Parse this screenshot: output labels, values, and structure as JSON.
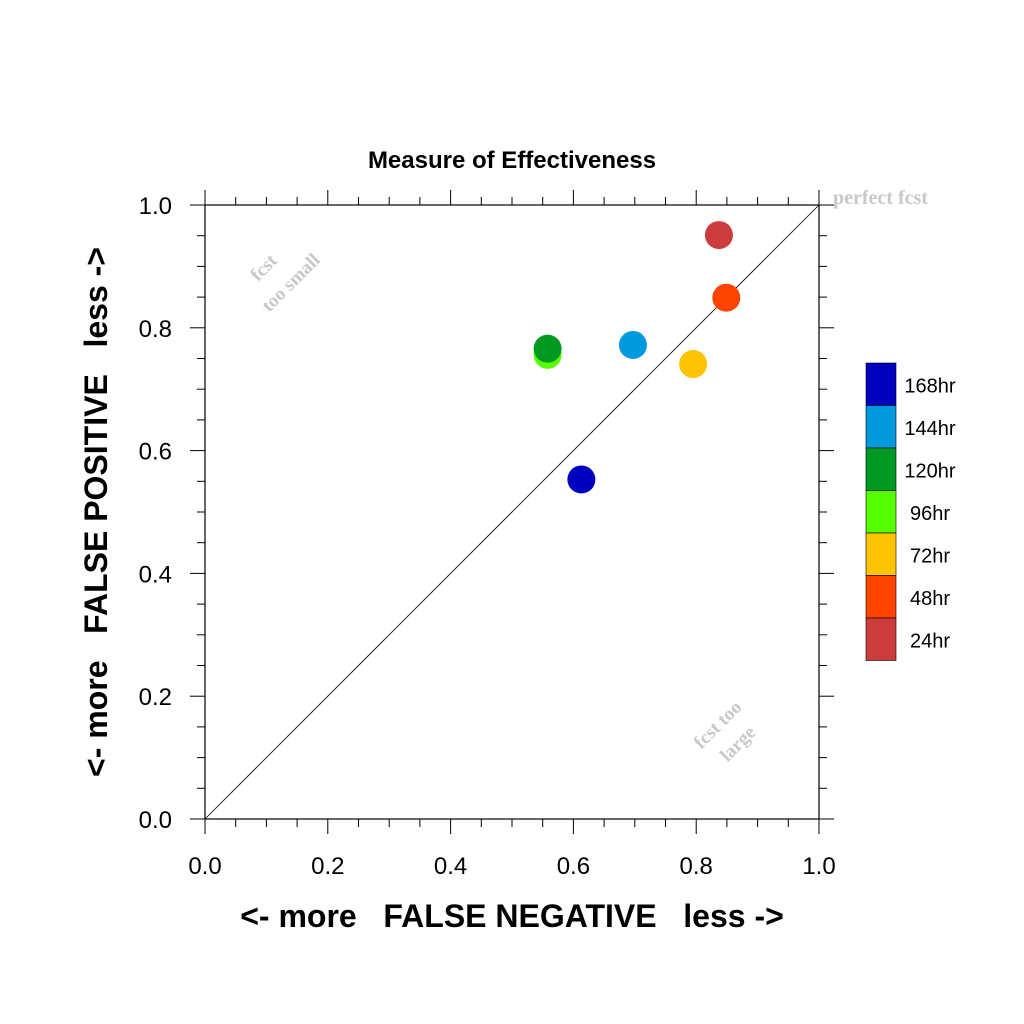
{
  "chart_data": {
    "type": "scatter",
    "title": "Measure of Effectiveness",
    "xlabel": "<- more   FALSE NEGATIVE   less ->",
    "ylabel": "<- more   FALSE POSITIVE   less ->",
    "xlim": [
      0.0,
      1.0
    ],
    "ylim": [
      0.0,
      1.0
    ],
    "x_ticks": [
      "0.0",
      "0.2",
      "0.4",
      "0.6",
      "0.8",
      "1.0"
    ],
    "y_ticks": [
      "0.0",
      "0.2",
      "0.4",
      "0.6",
      "0.8",
      "1.0"
    ],
    "grid": false,
    "diagonal_reference_line": true,
    "legend_position": "right",
    "annotations": {
      "top_left_line1": "fcst",
      "top_left_line2": "too small",
      "bottom_right_line1": "fcst too",
      "bottom_right_line2": "large",
      "corner": "perfect fcst"
    },
    "series": [
      {
        "name": "168hr",
        "color": "#0000c0",
        "x": 0.613,
        "y": 0.553
      },
      {
        "name": "144hr",
        "color": "#0099dd",
        "x": 0.697,
        "y": 0.772
      },
      {
        "name": "120hr",
        "color": "#009922",
        "x": 0.558,
        "y": 0.766
      },
      {
        "name": "96hr",
        "color": "#55ff00",
        "x": 0.558,
        "y": 0.756
      },
      {
        "name": "72hr",
        "color": "#ffc400",
        "x": 0.795,
        "y": 0.741
      },
      {
        "name": "48hr",
        "color": "#ff4400",
        "x": 0.849,
        "y": 0.849
      },
      {
        "name": "24hr",
        "color": "#cc3c3c",
        "x": 0.837,
        "y": 0.951
      }
    ],
    "plot_order": [
      "24hr",
      "48hr",
      "72hr",
      "96hr",
      "120hr",
      "144hr",
      "168hr"
    ]
  }
}
